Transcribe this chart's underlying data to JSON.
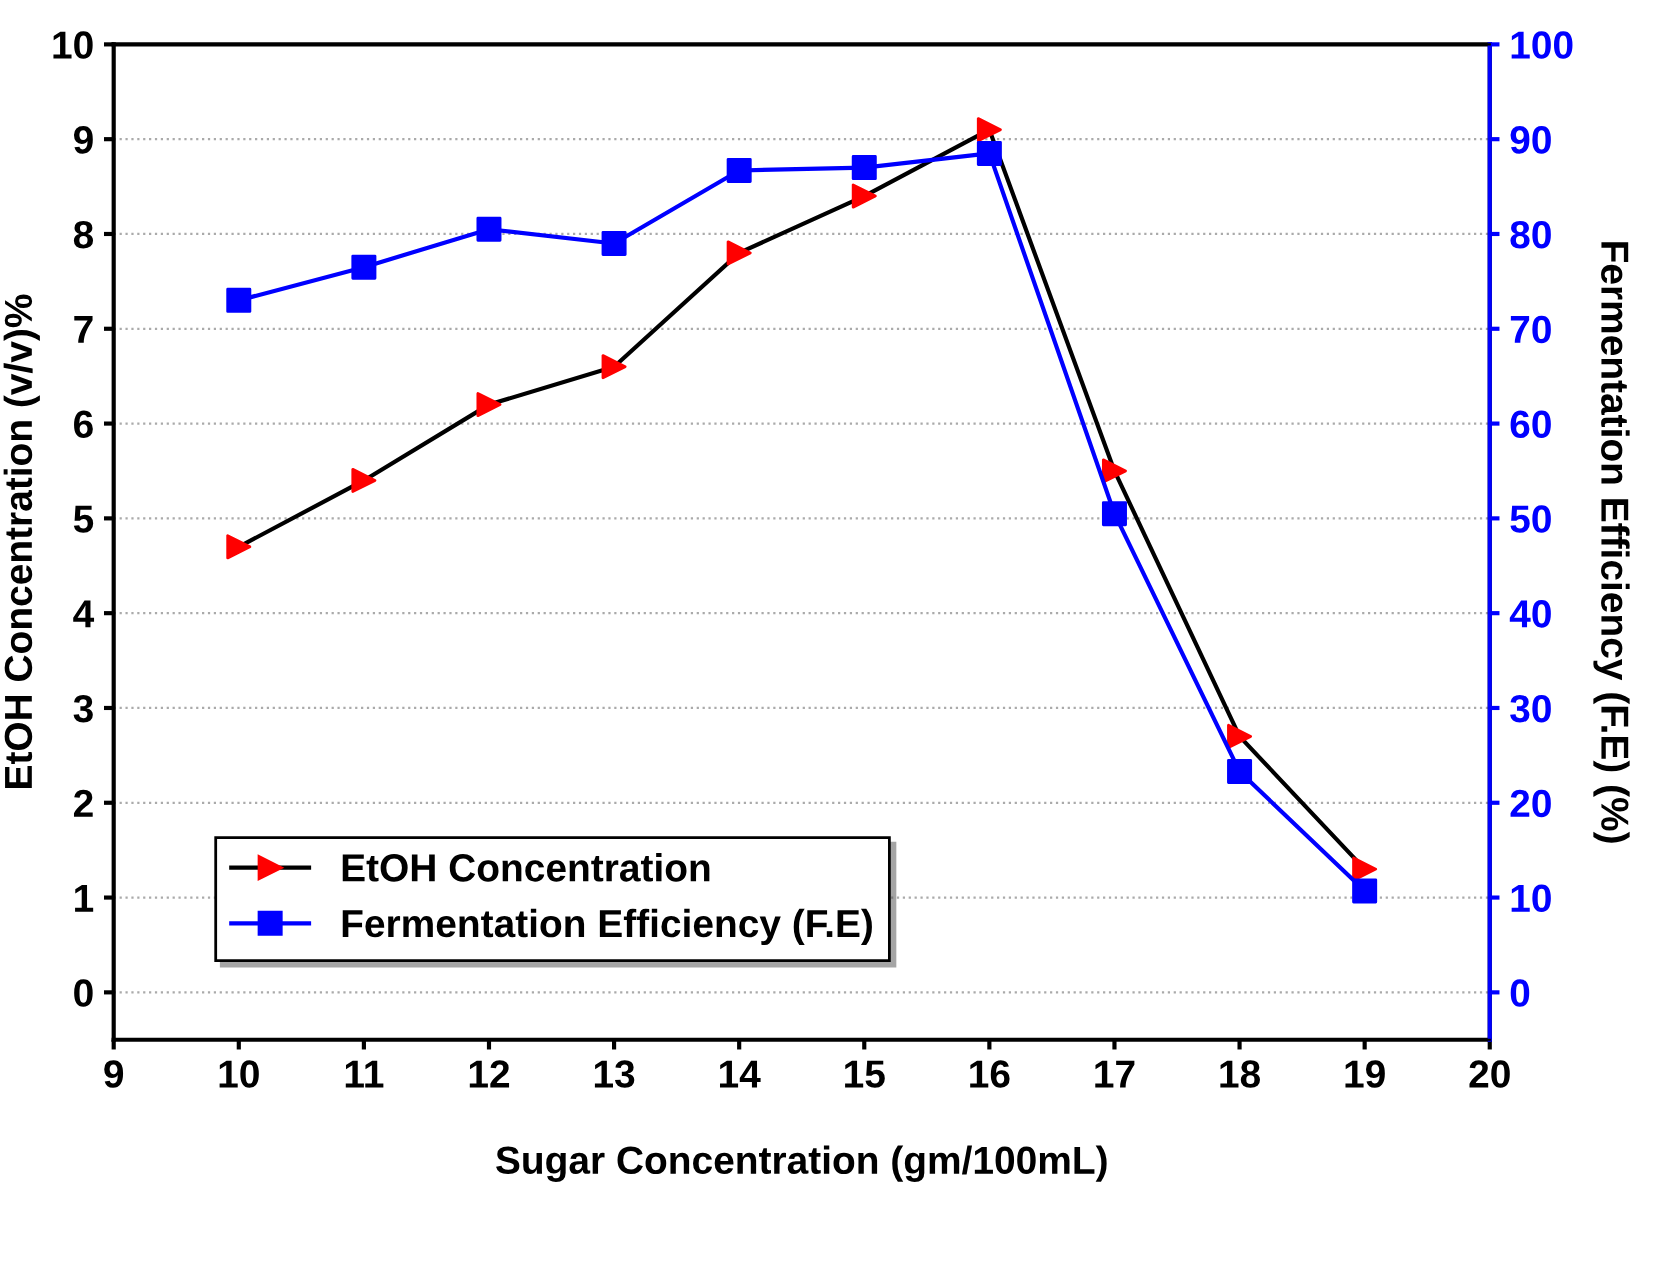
{
  "chart_data": {
    "type": "line",
    "xlabel": "Sugar Concentration (gm/100mL)",
    "ylabel": "EtOH Concentration (v/v)%",
    "y2label": "Fermentation Efficiency (F.E) (%)",
    "x": [
      10,
      11,
      12,
      13,
      14,
      15,
      16,
      17,
      18,
      19
    ],
    "series": [
      {
        "name": "EtOH Concentration",
        "color": "#000000",
        "colors": [
          "#ff0000",
          "#ff0000",
          "#ff0000",
          "#ff0000",
          "#ff0000",
          "#ff0000",
          "#ff0000",
          "#ff0000",
          "#ff0000",
          "#ff0000"
        ],
        "marker": "triangle",
        "values": [
          4.7,
          5.4,
          6.2,
          6.6,
          7.8,
          8.4,
          9.1,
          5.5,
          2.7,
          1.3
        ]
      },
      {
        "name": "Fermentation Efficiency (F.E)",
        "color": "#0000ff",
        "marker": "square",
        "axis": "y2",
        "values": [
          73,
          76.5,
          80.5,
          79,
          86.7,
          87,
          88.5,
          50.5,
          23.3,
          10.7
        ]
      }
    ],
    "xlim": [
      9,
      20
    ],
    "xticks": [
      9,
      10,
      11,
      12,
      13,
      14,
      15,
      16,
      17,
      18,
      19,
      20
    ],
    "ylim": [
      -0.5,
      10
    ],
    "yticks": [
      0,
      1,
      2,
      3,
      4,
      5,
      6,
      7,
      8,
      9,
      10
    ],
    "y2lim": [
      -5,
      100
    ],
    "y2ticks": [
      0,
      10,
      20,
      30,
      40,
      50,
      60,
      70,
      80,
      90,
      100
    ],
    "grid": "y",
    "legend": "bottom left",
    "line_style": "solid"
  }
}
